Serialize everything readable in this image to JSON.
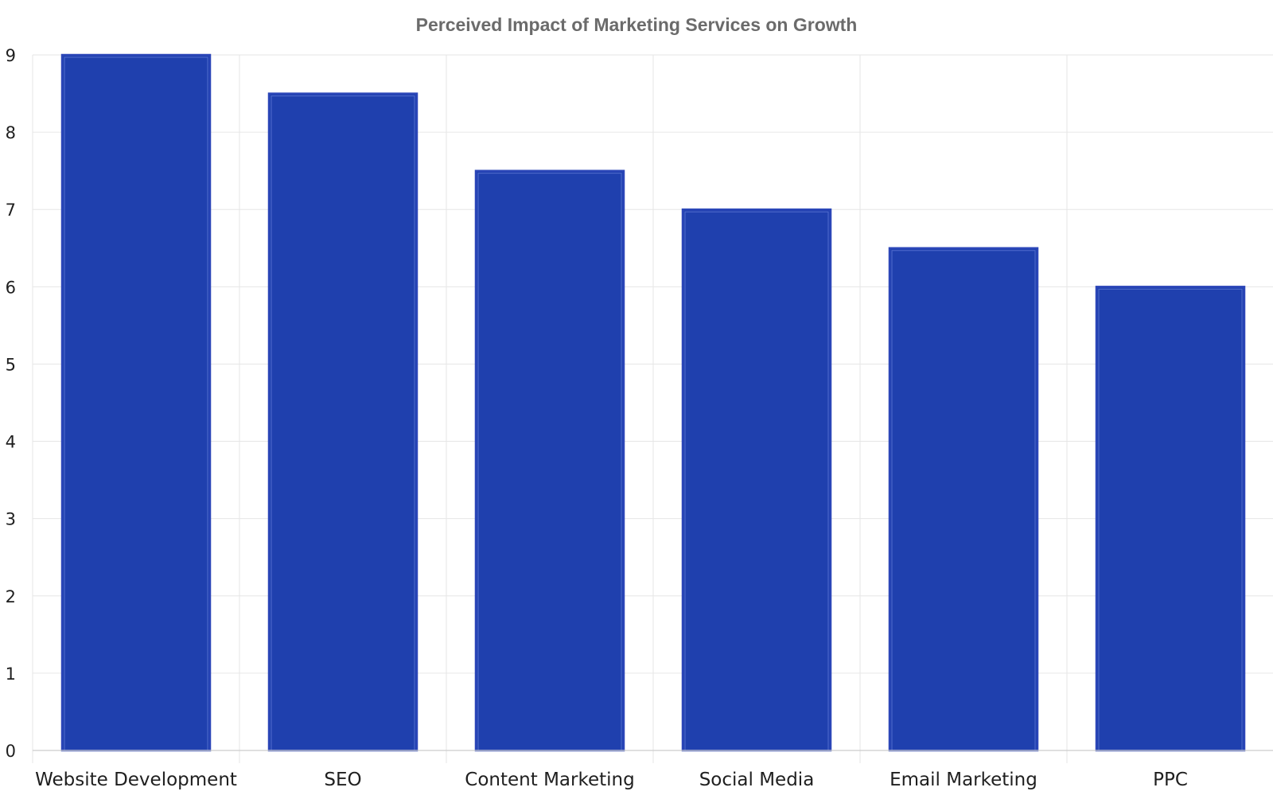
{
  "chart_data": {
    "type": "bar",
    "title": "Perceived Impact of Marketing Services on Growth",
    "xlabel": "",
    "ylabel": "",
    "categories": [
      "Website Development",
      "SEO",
      "Content Marketing",
      "Social Media",
      "Email Marketing",
      "PPC"
    ],
    "values": [
      9,
      8.5,
      7.5,
      7,
      6.5,
      6
    ],
    "ylim": [
      0,
      9
    ],
    "yticks": [
      0,
      1,
      2,
      3,
      4,
      5,
      6,
      7,
      8,
      9
    ],
    "grid": true,
    "legend": "none",
    "colors": {
      "bar_fill": "#1f40ae",
      "bar_border": "#2b46b8",
      "grid": "#e6e6e6",
      "title": "#6b6b6b"
    }
  }
}
